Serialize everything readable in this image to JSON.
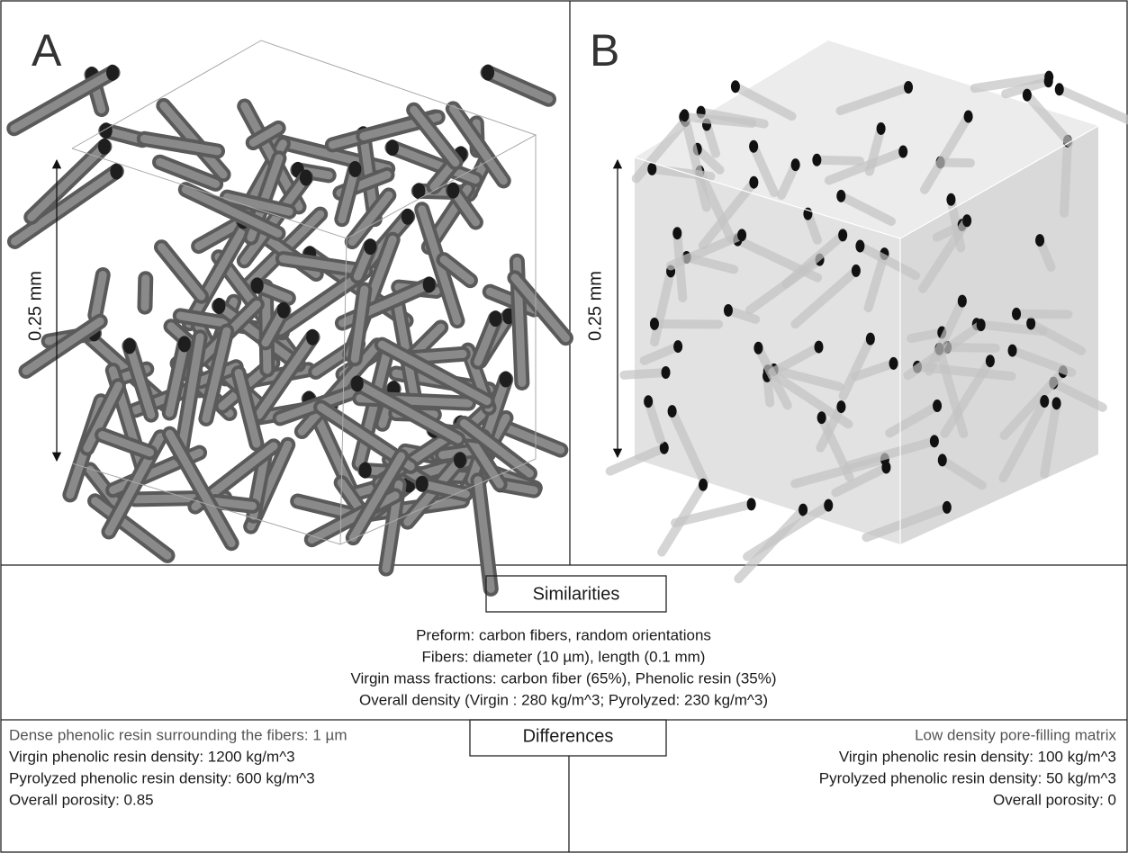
{
  "panels": [
    {
      "label": "A",
      "scale": "0.25 mm"
    },
    {
      "label": "B",
      "scale": "0.25 mm"
    }
  ],
  "similarities": {
    "heading": "Similarities",
    "lines": [
      "Preform: carbon fibers, random orientations",
      "Fibers:  diameter (10 µm), length (0.1 mm)",
      "Virgin mass fractions: carbon fiber (65%), Phenolic resin (35%)",
      "Overall density (Virgin : 280 kg/m^3; Pyrolyzed: 230 kg/m^3)"
    ]
  },
  "differences": {
    "heading": "Differences",
    "left": [
      "Dense phenolic resin surrounding the fibers: 1 µm",
      "Virgin phenolic resin density: 1200 kg/m^3",
      "Pyrolyzed phenolic resin density: 600 kg/m^3",
      "Overall porosity: 0.85"
    ],
    "right": [
      "Low density pore-filling matrix",
      "Virgin phenolic resin density: 100 kg/m^3",
      "Pyrolyzed phenolic resin density: 50 kg/m^3",
      "Overall porosity: 0"
    ]
  }
}
